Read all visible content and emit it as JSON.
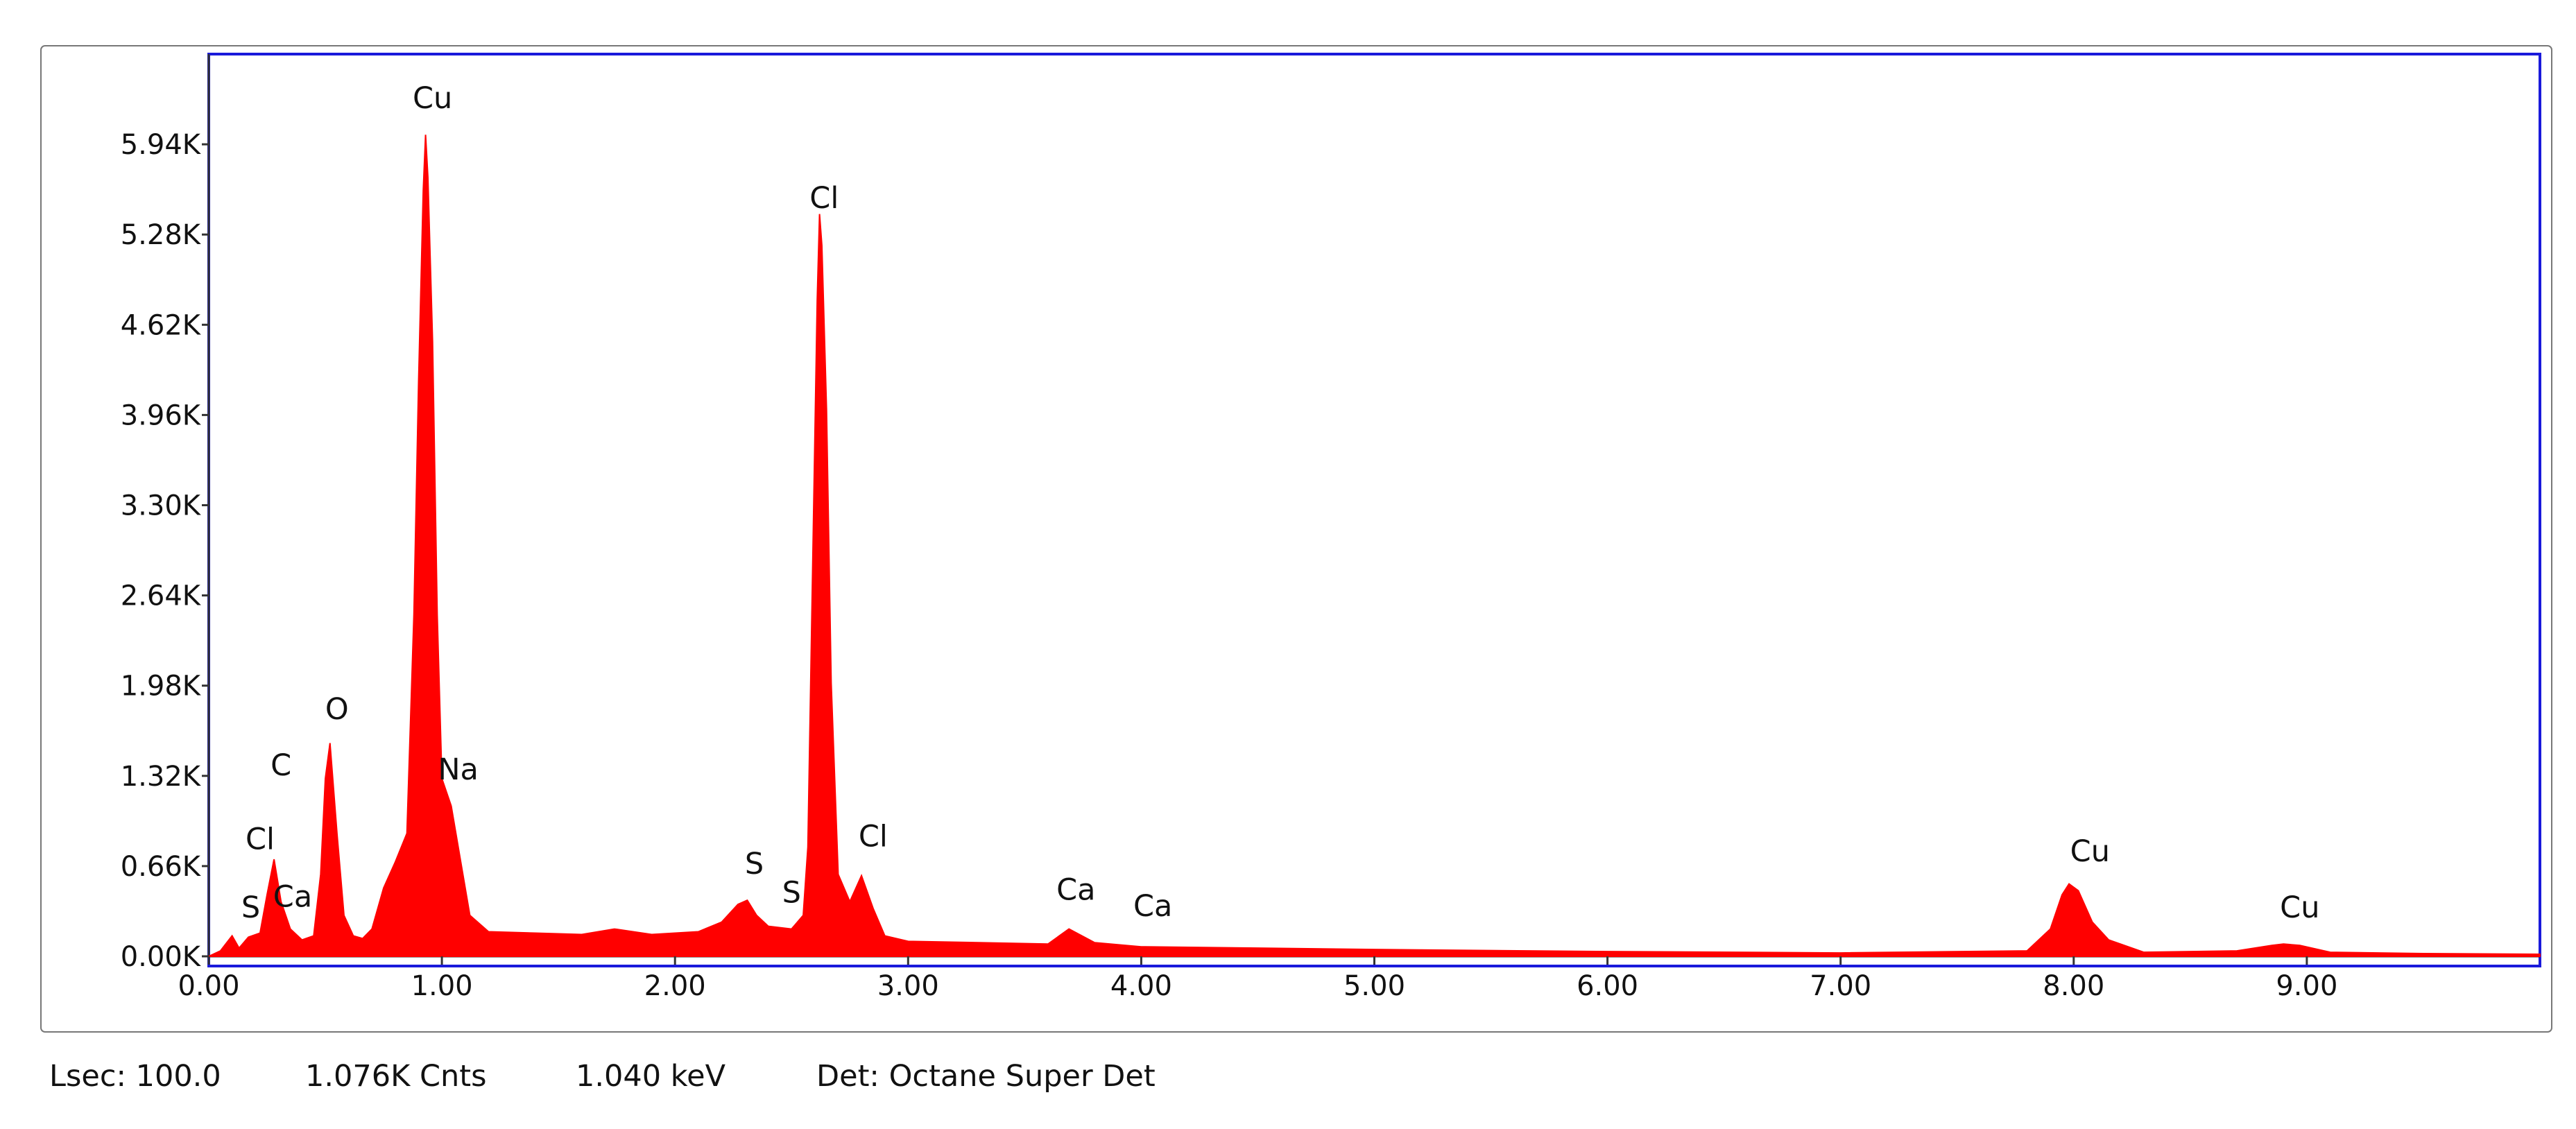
{
  "chart_data": {
    "type": "area",
    "color": "#ff0000",
    "x": [
      0,
      0.05,
      0.1,
      0.13,
      0.17,
      0.22,
      0.25,
      0.28,
      0.31,
      0.35,
      0.4,
      0.45,
      0.48,
      0.5,
      0.52,
      0.55,
      0.58,
      0.62,
      0.66,
      0.7,
      0.75,
      0.8,
      0.85,
      0.88,
      0.9,
      0.92,
      0.93,
      0.94,
      0.96,
      0.98,
      1.0,
      1.04,
      1.08,
      1.12,
      1.2,
      1.4,
      1.6,
      1.74,
      1.9,
      2.1,
      2.2,
      2.27,
      2.31,
      2.35,
      2.4,
      2.5,
      2.55,
      2.57,
      2.59,
      2.61,
      2.62,
      2.63,
      2.65,
      2.67,
      2.7,
      2.75,
      2.8,
      2.85,
      2.9,
      3.0,
      3.3,
      3.6,
      3.69,
      3.8,
      4.0,
      4.5,
      5.0,
      6.0,
      7.0,
      7.8,
      7.9,
      7.95,
      7.98,
      8.02,
      8.08,
      8.15,
      8.3,
      8.7,
      8.85,
      8.9,
      8.97,
      9.1,
      9.5,
      10.0
    ],
    "values": [
      0,
      40,
      150,
      60,
      140,
      170,
      450,
      710,
      400,
      200,
      120,
      150,
      600,
      1300,
      1560,
      900,
      300,
      150,
      130,
      200,
      500,
      690,
      900,
      2500,
      4200,
      5600,
      6010,
      5700,
      4500,
      2500,
      1300,
      1100,
      700,
      300,
      180,
      170,
      160,
      200,
      160,
      180,
      250,
      380,
      410,
      300,
      220,
      200,
      300,
      800,
      2800,
      4800,
      5430,
      5200,
      4000,
      2000,
      600,
      400,
      590,
      350,
      150,
      110,
      100,
      90,
      200,
      100,
      70,
      60,
      50,
      35,
      25,
      40,
      200,
      450,
      530,
      480,
      250,
      120,
      30,
      40,
      80,
      90,
      80,
      30,
      20,
      15
    ],
    "xlim": [
      0,
      10
    ],
    "ylim": [
      0,
      6600
    ],
    "xticks": [
      {
        "value": 0,
        "label": "0.00"
      },
      {
        "value": 1,
        "label": "1.00"
      },
      {
        "value": 2,
        "label": "2.00"
      },
      {
        "value": 3,
        "label": "3.00"
      },
      {
        "value": 4,
        "label": "4.00"
      },
      {
        "value": 5,
        "label": "5.00"
      },
      {
        "value": 6,
        "label": "6.00"
      },
      {
        "value": 7,
        "label": "7.00"
      },
      {
        "value": 8,
        "label": "8.00"
      },
      {
        "value": 9,
        "label": "9.00"
      }
    ],
    "yticks": [
      {
        "value": 0,
        "label": "0.00K"
      },
      {
        "value": 660,
        "label": "0.66K"
      },
      {
        "value": 1320,
        "label": "1.32K"
      },
      {
        "value": 1980,
        "label": "1.98K"
      },
      {
        "value": 2640,
        "label": "2.64K"
      },
      {
        "value": 3300,
        "label": "3.30K"
      },
      {
        "value": 3960,
        "label": "3.96K"
      },
      {
        "value": 4620,
        "label": "4.62K"
      },
      {
        "value": 5280,
        "label": "5.28K"
      },
      {
        "value": 5940,
        "label": "5.94K"
      }
    ],
    "annotations": [
      {
        "text": "Cu",
        "x": 0.96,
        "y": 6280
      },
      {
        "text": "Cl",
        "x": 2.64,
        "y": 5550
      },
      {
        "text": "O",
        "x": 0.55,
        "y": 1810
      },
      {
        "text": "C",
        "x": 0.31,
        "y": 1400
      },
      {
        "text": "Na",
        "x": 1.07,
        "y": 1370
      },
      {
        "text": "Cl",
        "x": 0.22,
        "y": 860
      },
      {
        "text": "S",
        "x": 0.18,
        "y": 360
      },
      {
        "text": "Ca",
        "x": 0.36,
        "y": 440
      },
      {
        "text": "S",
        "x": 2.34,
        "y": 680
      },
      {
        "text": "S",
        "x": 2.5,
        "y": 470
      },
      {
        "text": "Cl",
        "x": 2.85,
        "y": 880
      },
      {
        "text": "Ca",
        "x": 3.72,
        "y": 490
      },
      {
        "text": "Ca",
        "x": 4.05,
        "y": 370
      },
      {
        "text": "Cu",
        "x": 8.07,
        "y": 770
      },
      {
        "text": "Cu",
        "x": 8.97,
        "y": 360
      }
    ]
  },
  "status": [
    "Lsec: 100.0",
    "1.076K Cnts",
    "1.040 keV",
    "Det: Octane Super Det"
  ]
}
